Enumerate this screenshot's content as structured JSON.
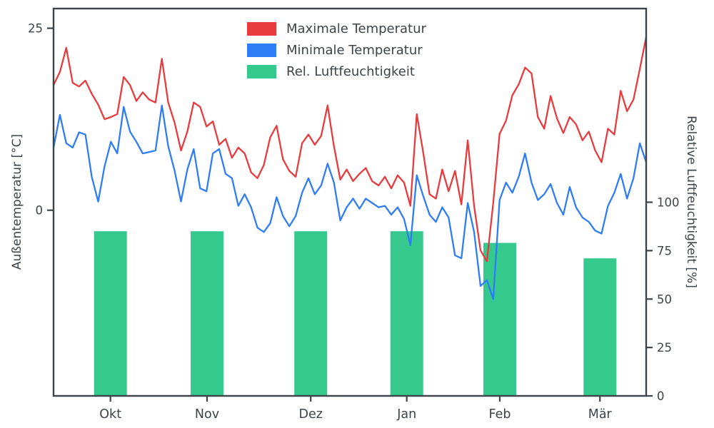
{
  "figure": {
    "background": "#ffffff",
    "text_color": "#3e4347",
    "spine_color": "#3e4347"
  },
  "chart_data": {
    "type": "line",
    "title": "",
    "left_axis": {
      "label": "Außentemperatur [°C]",
      "ticks": [
        25,
        0
      ],
      "range": [
        -25.5,
        27.7
      ]
    },
    "right_axis": {
      "label": "Relative Luftfeuchtigkeit [%]",
      "ticks": [
        0,
        25,
        50,
        75,
        100
      ],
      "range": [
        0,
        200
      ]
    },
    "x_axis": {
      "tick_labels": [
        "Okt",
        "Nov",
        "Dez",
        "Jan",
        "Feb",
        "Mär"
      ],
      "tick_positions": [
        0.096,
        0.259,
        0.434,
        0.596,
        0.753,
        0.922
      ]
    },
    "legend": {
      "position": "upper center-left",
      "frame": false
    },
    "series": [
      {
        "name": "Maximale Temperatur",
        "type": "line",
        "axis": "left",
        "color": "#e73b3e",
        "values": [
          17.2,
          19.0,
          22.3,
          17.5,
          17.0,
          17.8,
          16.0,
          14.5,
          12.5,
          12.8,
          13.2,
          18.3,
          17.2,
          15.0,
          16.2,
          15.2,
          14.8,
          20.8,
          14.8,
          12.0,
          8.2,
          10.8,
          14.8,
          14.2,
          11.5,
          12.2,
          9.0,
          9.8,
          7.2,
          8.6,
          7.8,
          5.2,
          4.4,
          6.2,
          10.0,
          11.6,
          7.0,
          5.4,
          4.6,
          9.2,
          10.4,
          9.0,
          10.2,
          14.4,
          8.8,
          4.2,
          5.6,
          4.0,
          5.0,
          5.8,
          4.0,
          3.4,
          4.6,
          3.0,
          4.8,
          3.8,
          0.6,
          13.2,
          8.0,
          2.2,
          1.6,
          5.6,
          2.6,
          5.4,
          0.8,
          9.6,
          0.6,
          -5.5,
          -7.0,
          1.0,
          10.5,
          12.3,
          15.8,
          17.3,
          19.6,
          18.8,
          12.8,
          11.2,
          15.7,
          12.6,
          10.6,
          12.8,
          11.8,
          9.6,
          10.8,
          8.2,
          6.6,
          11.2,
          10.4,
          16.4,
          13.6,
          15.2,
          19.4,
          23.8
        ]
      },
      {
        "name": "Minimale Temperatur",
        "type": "line",
        "axis": "left",
        "color": "#2f7df6",
        "values": [
          8.6,
          13.1,
          9.2,
          8.6,
          10.7,
          10.4,
          4.6,
          1.2,
          6.0,
          9.4,
          7.8,
          14.2,
          10.8,
          9.4,
          7.8,
          8.0,
          8.2,
          14.4,
          8.8,
          5.4,
          1.2,
          5.6,
          8.4,
          3.0,
          2.6,
          7.8,
          8.4,
          5.0,
          4.4,
          0.6,
          2.2,
          0.4,
          -2.4,
          -3.0,
          -1.8,
          1.8,
          -0.8,
          -2.2,
          -0.8,
          2.4,
          4.4,
          2.2,
          3.4,
          6.4,
          3.8,
          -1.4,
          0.4,
          1.6,
          0.2,
          1.6,
          1.0,
          0.4,
          0.6,
          -0.6,
          0.4,
          -1.2,
          -4.8,
          4.8,
          2.0,
          -0.6,
          -1.6,
          0.4,
          -1.0,
          -6.2,
          -6.6,
          1.0,
          -3.0,
          -10.4,
          -9.6,
          -12.2,
          1.4,
          3.8,
          2.4,
          4.6,
          7.8,
          3.8,
          1.4,
          2.2,
          3.6,
          1.0,
          -0.6,
          3.2,
          0.4,
          -1.0,
          -1.6,
          -2.8,
          -3.2,
          0.6,
          2.4,
          5.0,
          1.6,
          4.4,
          9.2,
          6.6
        ]
      },
      {
        "name": "Rel. Luftfeuchtigkeit",
        "type": "bar",
        "axis": "right",
        "color": "#35c98e",
        "categories": [
          "Okt",
          "Nov",
          "Dez",
          "Jan",
          "Feb",
          "Mär"
        ],
        "values": [
          85,
          85,
          85,
          85,
          79,
          71
        ],
        "bar_width_fraction": 0.0554
      }
    ]
  }
}
